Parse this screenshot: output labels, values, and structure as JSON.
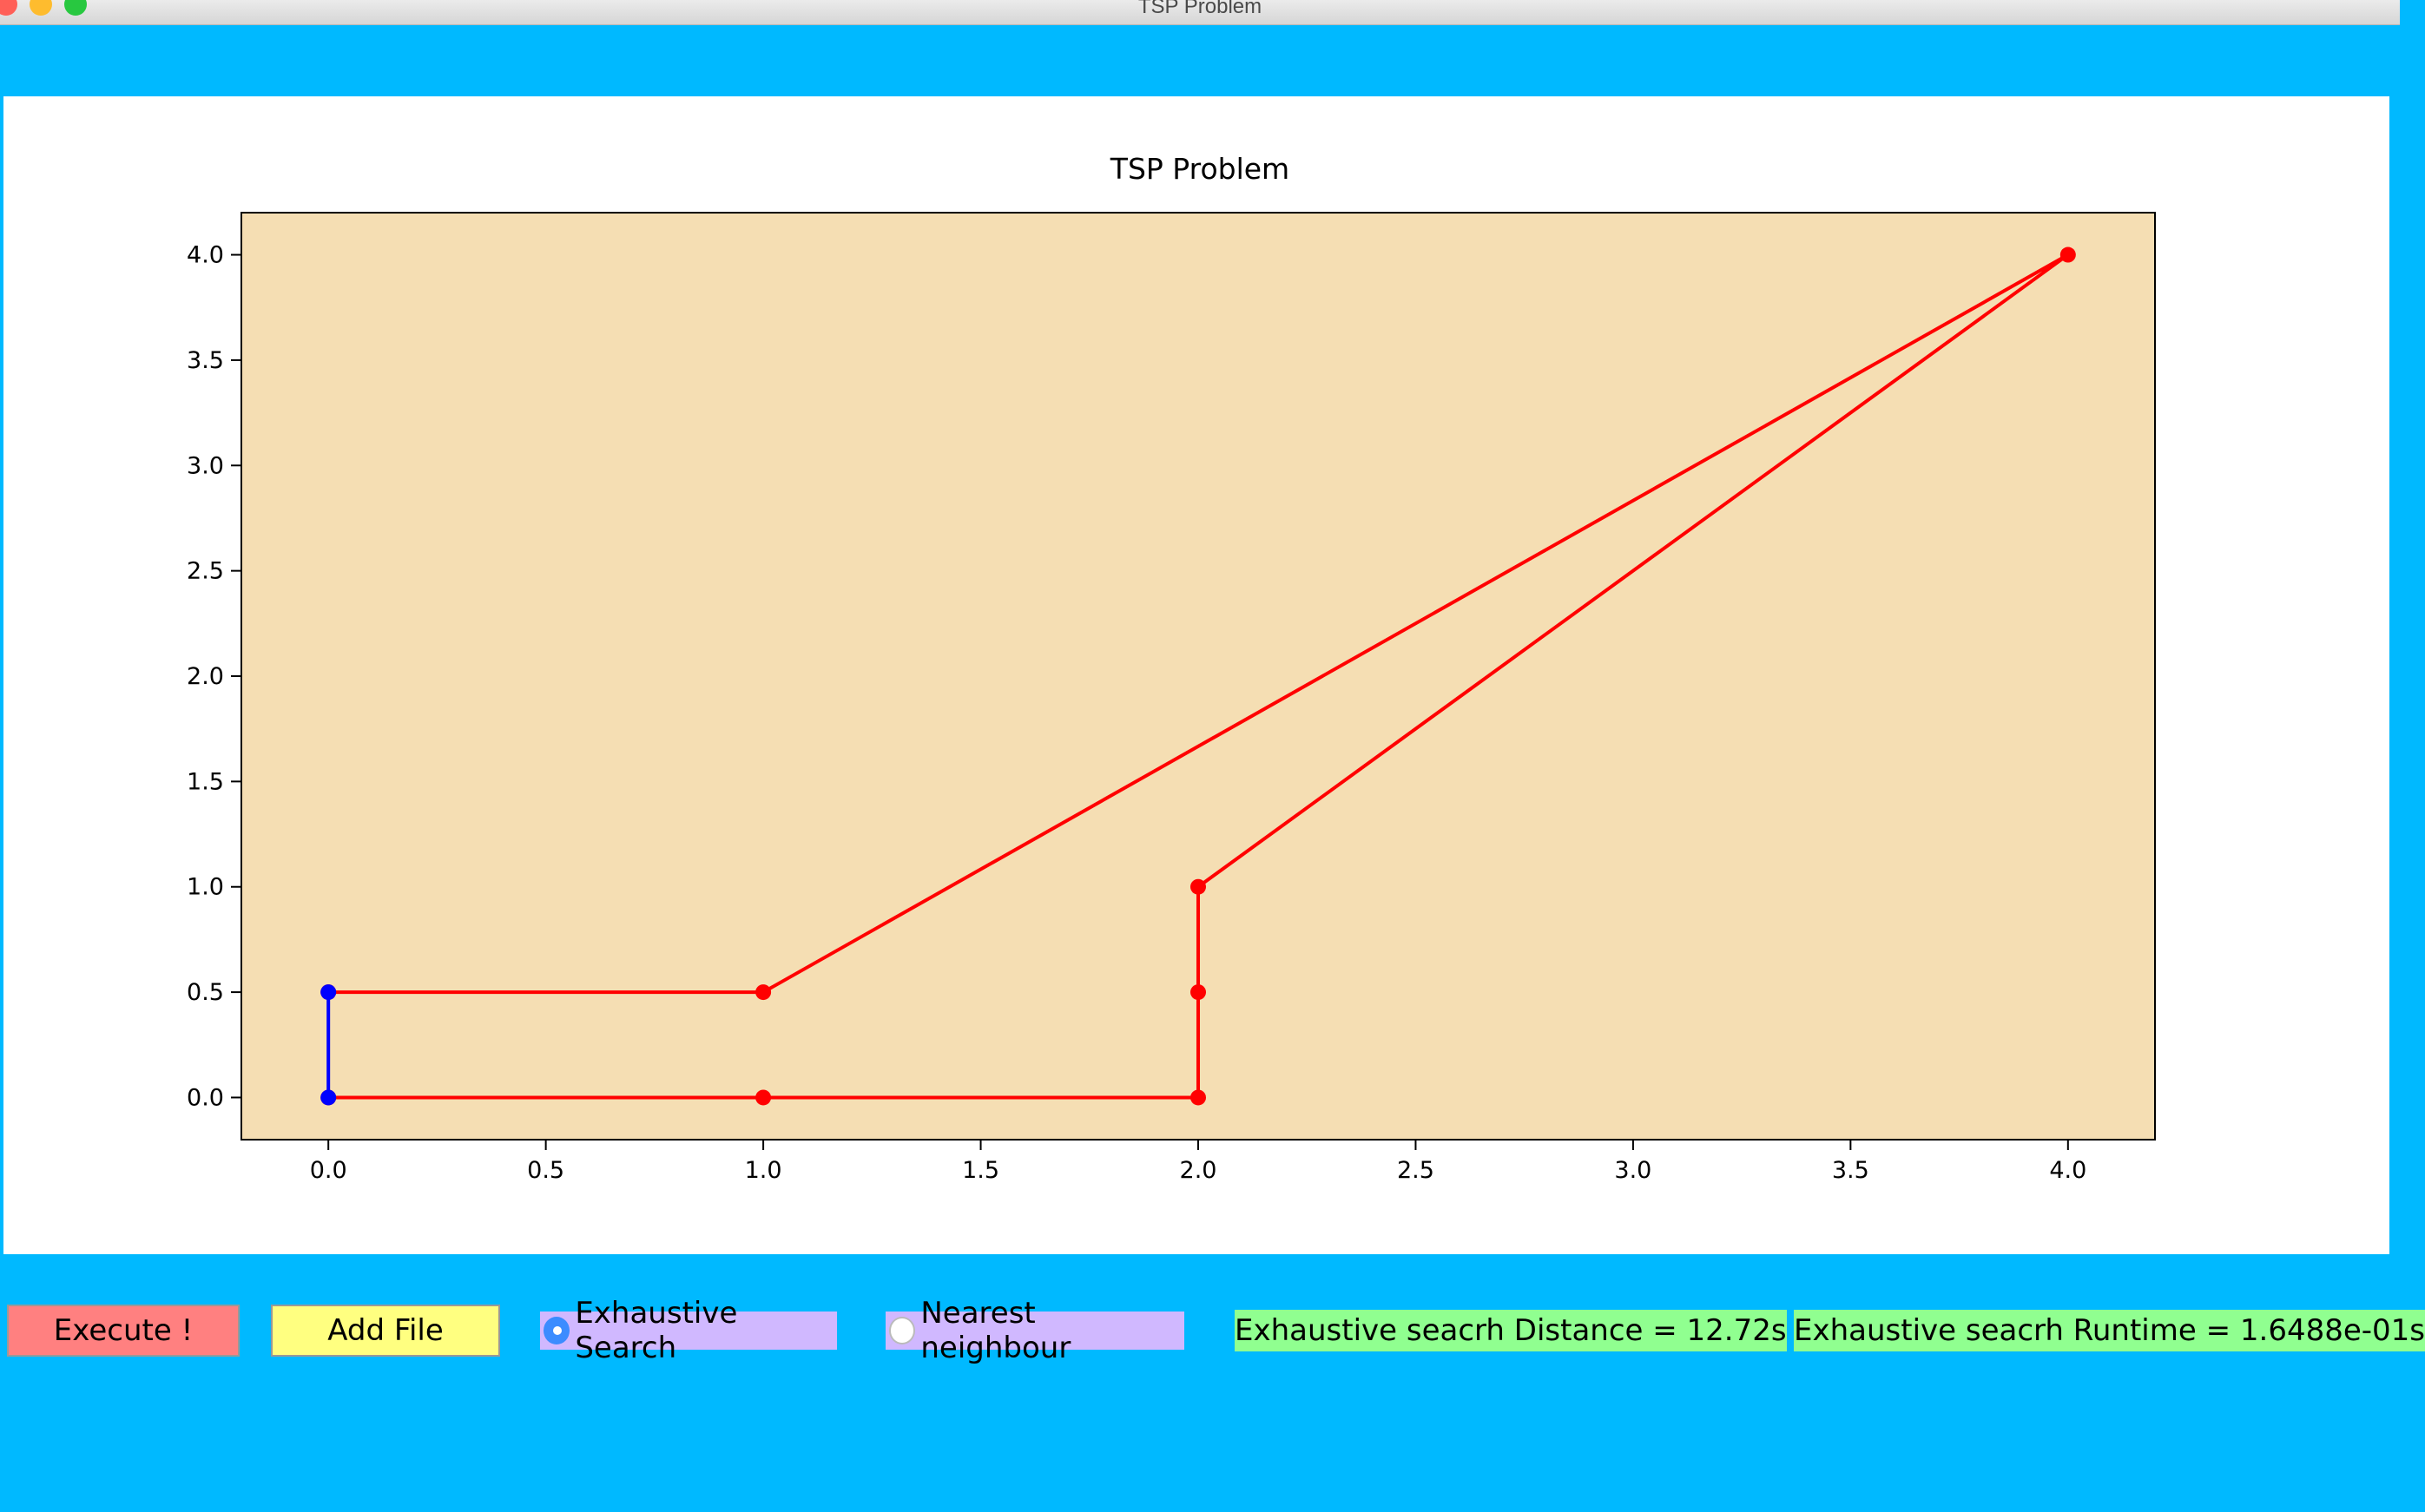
{
  "window": {
    "title": "TSP Problem"
  },
  "controls": {
    "execute_label": "Execute !",
    "add_file_label": "Add File",
    "radio_exhaustive_label": "Exhaustive Search",
    "radio_nearest_label": "Nearest neighbour",
    "selected": "exhaustive"
  },
  "results": {
    "distance_text": "Exhaustive seacrh Distance = 12.72s",
    "runtime_text": "Exhaustive seacrh Runtime = 1.6488e-01s"
  },
  "colors": {
    "background": "#00B9FF",
    "plot_face": "#F5DEB3",
    "route": "#FF0000",
    "highlight": "#0000FF",
    "execute_bg": "#FF8080",
    "add_file_bg": "#FFFF80",
    "radio_bg": "#D0B8FF",
    "result_bg": "#90FF90"
  },
  "chart_data": {
    "type": "line",
    "title": "TSP Problem",
    "xlim": [
      -0.2,
      4.2
    ],
    "ylim": [
      -0.2,
      4.2
    ],
    "xticks": [
      0.0,
      0.5,
      1.0,
      1.5,
      2.0,
      2.5,
      3.0,
      3.5,
      4.0
    ],
    "yticks": [
      0.0,
      0.5,
      1.0,
      1.5,
      2.0,
      2.5,
      3.0,
      3.5,
      4.0
    ],
    "xtick_labels": [
      "0.0",
      "0.5",
      "1.0",
      "1.5",
      "2.0",
      "2.5",
      "3.0",
      "3.5",
      "4.0"
    ],
    "ytick_labels": [
      "0.0",
      "0.5",
      "1.0",
      "1.5",
      "2.0",
      "2.5",
      "3.0",
      "3.5",
      "4.0"
    ],
    "series": [
      {
        "color": "#FF0000",
        "points": [
          [
            0,
            0
          ],
          [
            1,
            0
          ],
          [
            2,
            0
          ],
          [
            2,
            0.5
          ],
          [
            2,
            1
          ],
          [
            4,
            4
          ],
          [
            1,
            0.5
          ],
          [
            0,
            0.5
          ]
        ]
      },
      {
        "color": "#0000FF",
        "points": [
          [
            0,
            0.5
          ],
          [
            0,
            0
          ]
        ]
      }
    ]
  }
}
